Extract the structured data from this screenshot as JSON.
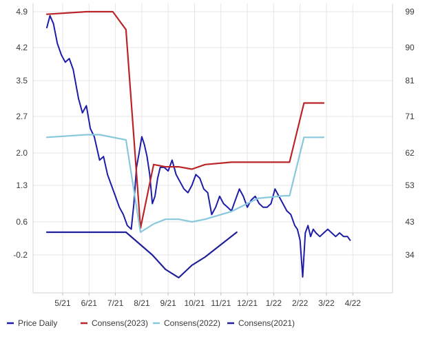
{
  "chart_data": {
    "type": "line",
    "grid": true,
    "legend_position": "bottom",
    "x_ticks": [
      "5/21",
      "6/21",
      "7/21",
      "8/21",
      "9/21",
      "10/21",
      "11/21",
      "12/21",
      "1/22",
      "2/22",
      "3/22",
      "4/22"
    ],
    "y_left": {
      "ticks": [
        "4.9",
        "4.2",
        "3.5",
        "2.7",
        "2.0",
        "1.3",
        "0.6",
        "-0.2"
      ],
      "range": [
        -1.0,
        4.9
      ]
    },
    "y_right": {
      "ticks": [
        "99",
        "90",
        "81",
        "71",
        "62",
        "53",
        "43",
        "34"
      ],
      "range": [
        25,
        99
      ]
    },
    "series": [
      {
        "name": "Price Daily",
        "axis": "right",
        "color": "#1c1ca8",
        "x": [
          0,
          0.12,
          0.25,
          0.4,
          0.55,
          0.7,
          0.85,
          1.0,
          1.2,
          1.35,
          1.5,
          1.65,
          1.8,
          2.0,
          2.15,
          2.3,
          2.45,
          2.6,
          2.75,
          2.9,
          3.05,
          3.2,
          3.3,
          3.4,
          3.5,
          3.6,
          3.7,
          3.8,
          3.9,
          4.0,
          4.1,
          4.2,
          4.3,
          4.45,
          4.6,
          4.75,
          4.9,
          5.05,
          5.2,
          5.35,
          5.5,
          5.65,
          5.8,
          5.95,
          6.1,
          6.25,
          6.4,
          6.55,
          6.7,
          6.85,
          7.0,
          7.15,
          7.3,
          7.45,
          7.6,
          7.75,
          7.9,
          8.05,
          8.2,
          8.35,
          8.5,
          8.65,
          8.8,
          8.95,
          9.1,
          9.25,
          9.4,
          9.5,
          9.6,
          9.7,
          9.8,
          9.9,
          10.0,
          10.05,
          10.1,
          10.2,
          10.35,
          10.5,
          10.65,
          10.8,
          10.95,
          11.1,
          11.25,
          11.4,
          11.5
        ],
        "values": [
          95,
          98,
          96,
          91,
          88,
          86,
          87,
          84,
          76,
          72,
          74,
          68,
          66,
          60,
          61,
          56,
          53,
          50,
          47,
          45,
          42,
          41,
          48,
          58,
          62,
          66,
          64,
          61,
          56,
          48,
          50,
          55,
          58,
          58,
          57,
          60,
          56,
          54,
          52,
          51,
          53,
          56,
          55,
          52,
          51,
          45,
          47,
          50,
          48,
          47,
          46,
          49,
          52,
          50,
          47,
          49,
          50,
          48,
          47,
          47,
          48,
          52,
          50,
          48,
          46,
          45,
          42,
          41,
          38,
          28,
          40,
          42,
          39,
          40,
          41,
          40,
          39,
          40,
          41,
          40,
          39,
          40,
          39,
          39,
          38
        ]
      },
      {
        "name": "Consens(2023)",
        "axis": "left",
        "color": "#bb2426",
        "x": [
          0,
          1.5,
          2.5,
          3.0,
          3.55,
          4.05,
          4.5,
          5.0,
          5.5,
          6.0,
          7.0,
          8.0,
          9.0,
          9.2,
          9.75,
          10.5
        ],
        "values": [
          4.85,
          4.9,
          4.9,
          4.55,
          0.45,
          1.75,
          1.7,
          1.7,
          1.65,
          1.75,
          1.8,
          1.8,
          1.8,
          1.8,
          3.0,
          3.0
        ]
      },
      {
        "name": "Consens(2022)",
        "axis": "left",
        "color": "#88c8dc",
        "x": [
          0,
          1.5,
          2.0,
          3.0,
          3.55,
          4.05,
          4.5,
          5.0,
          5.5,
          6.0,
          7.0,
          8.0,
          9.0,
          9.2,
          9.75,
          10.5
        ],
        "values": [
          2.3,
          2.35,
          2.35,
          2.25,
          0.35,
          0.55,
          0.65,
          0.65,
          0.6,
          0.65,
          0.8,
          1.05,
          1.1,
          1.1,
          2.3,
          2.3
        ]
      },
      {
        "name": "Consens(2021)",
        "axis": "left",
        "color": "#1f1f9a",
        "x": [
          0,
          1.0,
          2.0,
          3.0,
          4.0,
          4.5,
          5.0,
          5.5,
          6.0,
          7.2
        ],
        "values": [
          0.35,
          0.35,
          0.35,
          0.35,
          -0.2,
          -0.55,
          -0.75,
          -0.45,
          -0.25,
          0.35
        ]
      }
    ]
  }
}
